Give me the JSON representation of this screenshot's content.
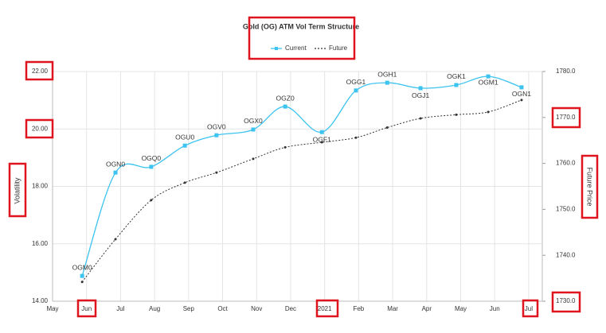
{
  "chart_data": {
    "type": "line",
    "title": "Gold (OG) ATM Vol Term Structure",
    "y_label": "Volatility",
    "y2_label": "Future Price",
    "xlim": [
      0,
      14.4
    ],
    "xticks": [
      {
        "value": 0,
        "label": "May"
      },
      {
        "value": 1,
        "label": "Jun"
      },
      {
        "value": 2,
        "label": "Jul"
      },
      {
        "value": 3,
        "label": "Aug"
      },
      {
        "value": 4,
        "label": "Sep"
      },
      {
        "value": 5,
        "label": "Oct"
      },
      {
        "value": 6,
        "label": "Nov"
      },
      {
        "value": 7,
        "label": "Dec"
      },
      {
        "value": 8,
        "label": "2021"
      },
      {
        "value": 9,
        "label": "Feb"
      },
      {
        "value": 10,
        "label": "Mar"
      },
      {
        "value": 11,
        "label": "Apr"
      },
      {
        "value": 12,
        "label": "May"
      },
      {
        "value": 13,
        "label": "Jun"
      },
      {
        "value": 14,
        "label": "Jul"
      }
    ],
    "ylim": [
      14,
      22
    ],
    "yticks": [
      {
        "value": 14,
        "label": "14.00"
      },
      {
        "value": 16,
        "label": "16.00"
      },
      {
        "value": 18,
        "label": "18.00"
      },
      {
        "value": 20,
        "label": "20.00"
      },
      {
        "value": 22,
        "label": "22.00"
      }
    ],
    "y2lim": [
      1730,
      1780
    ],
    "y2ticks": [
      {
        "value": 1730,
        "label": "1730.0"
      },
      {
        "value": 1740,
        "label": "1740.0"
      },
      {
        "value": 1750,
        "label": "1750.0"
      },
      {
        "value": 1760,
        "label": "1760.0"
      },
      {
        "value": 1770,
        "label": "1770.0"
      },
      {
        "value": 1780,
        "label": "1780.0"
      }
    ],
    "grid": true,
    "x": [
      0.87,
      1.85,
      2.9,
      3.89,
      4.82,
      5.9,
      6.84,
      7.92,
      8.92,
      9.84,
      10.82,
      11.87,
      12.81,
      13.79
    ],
    "point_labels": [
      "OGM0",
      "OGN0",
      "OGQ0",
      "OGU0",
      "OGV0",
      "OGX0",
      "OGZ0",
      "OGF1",
      "OGG1",
      "OGH1",
      "OGJ1",
      "OGK1",
      "OGM1",
      "OGN1"
    ],
    "series": [
      {
        "name": "Current",
        "color": "#3cc3ef",
        "values": [
          14.88,
          18.48,
          18.68,
          19.42,
          19.78,
          19.98,
          20.78,
          19.89,
          21.34,
          21.61,
          21.42,
          21.53,
          21.83,
          21.45
        ]
      },
      {
        "name": "Future",
        "color": "#333333",
        "axis": "y2",
        "dashed": true,
        "values": [
          1734.2,
          1743.5,
          1752.0,
          1755.8,
          1758.0,
          1761.0,
          1763.5,
          1764.6,
          1765.6,
          1767.8,
          1769.8,
          1770.6,
          1771.2,
          1773.8
        ]
      }
    ]
  }
}
